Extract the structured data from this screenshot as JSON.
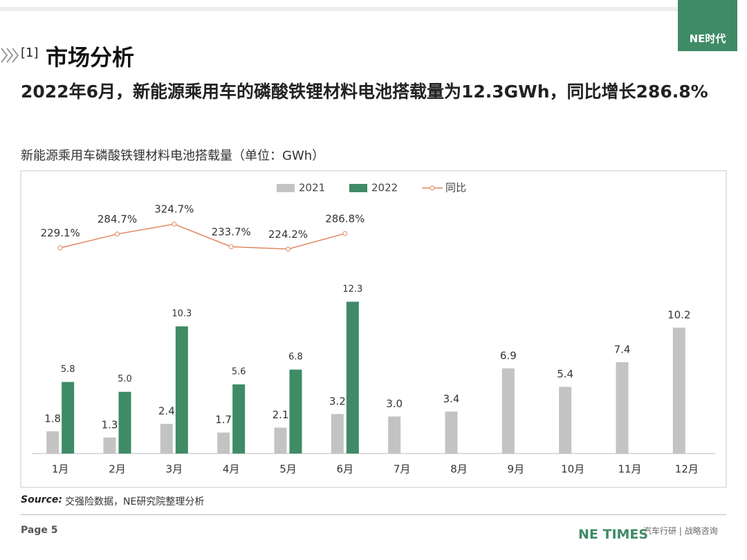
{
  "logo": "NE时代",
  "header": {
    "section": "[1]",
    "title": "市场分析",
    "headline": "2022年6月，新能源乘用车的磷酸铁锂材料电池搭载量为12.3GWh，同比增长286.8%"
  },
  "chart_data": {
    "type": "bar",
    "title": "新能源乘用车磷酸铁锂材料电池搭载量（单位：GWh）",
    "categories": [
      "1月",
      "2月",
      "3月",
      "4月",
      "5月",
      "6月",
      "7月",
      "8月",
      "9月",
      "10月",
      "11月",
      "12月"
    ],
    "ylim": [
      0,
      20.5
    ],
    "y2lim": [
      -600,
      420
    ],
    "legend": "top",
    "series": [
      {
        "name": "2021",
        "color": "#c3c3c3",
        "values": [
          1.8,
          1.3,
          2.4,
          1.7,
          2.1,
          3.2,
          3.0,
          3.4,
          6.9,
          5.4,
          7.4,
          10.2
        ],
        "value_labels": [
          "1.8",
          "1.3",
          "2.4",
          "1.7",
          "2.1",
          "3.2",
          "3.0",
          "3.4",
          "6.9",
          "5.4",
          "7.4",
          "10.2"
        ]
      },
      {
        "name": "2022",
        "color": "#3f8b66",
        "values": [
          5.8,
          5.0,
          10.3,
          5.6,
          6.8,
          12.3,
          null,
          null,
          null,
          null,
          null,
          null
        ],
        "value_labels": [
          "5.8",
          "5.0",
          "10.3",
          "5.6",
          "6.8",
          "12.3",
          null,
          null,
          null,
          null,
          null,
          null
        ]
      },
      {
        "name": "同比",
        "color": "#e0865f",
        "type": "line",
        "axis": "y2",
        "values": [
          229.1,
          284.7,
          324.7,
          233.7,
          224.2,
          286.8,
          null,
          null,
          null,
          null,
          null,
          null
        ],
        "value_labels": [
          "229.1%",
          "284.7%",
          "324.7%",
          "233.7%",
          "224.2%",
          "286.8%",
          null,
          null,
          null,
          null,
          null,
          null
        ]
      }
    ]
  },
  "source": {
    "label": "Source:",
    "text": "交强险数据，NE研究院整理分析"
  },
  "footer": {
    "page": "Page 5",
    "brand": "NE TIMES",
    "tagline": "汽车行研 | 战略咨询"
  }
}
